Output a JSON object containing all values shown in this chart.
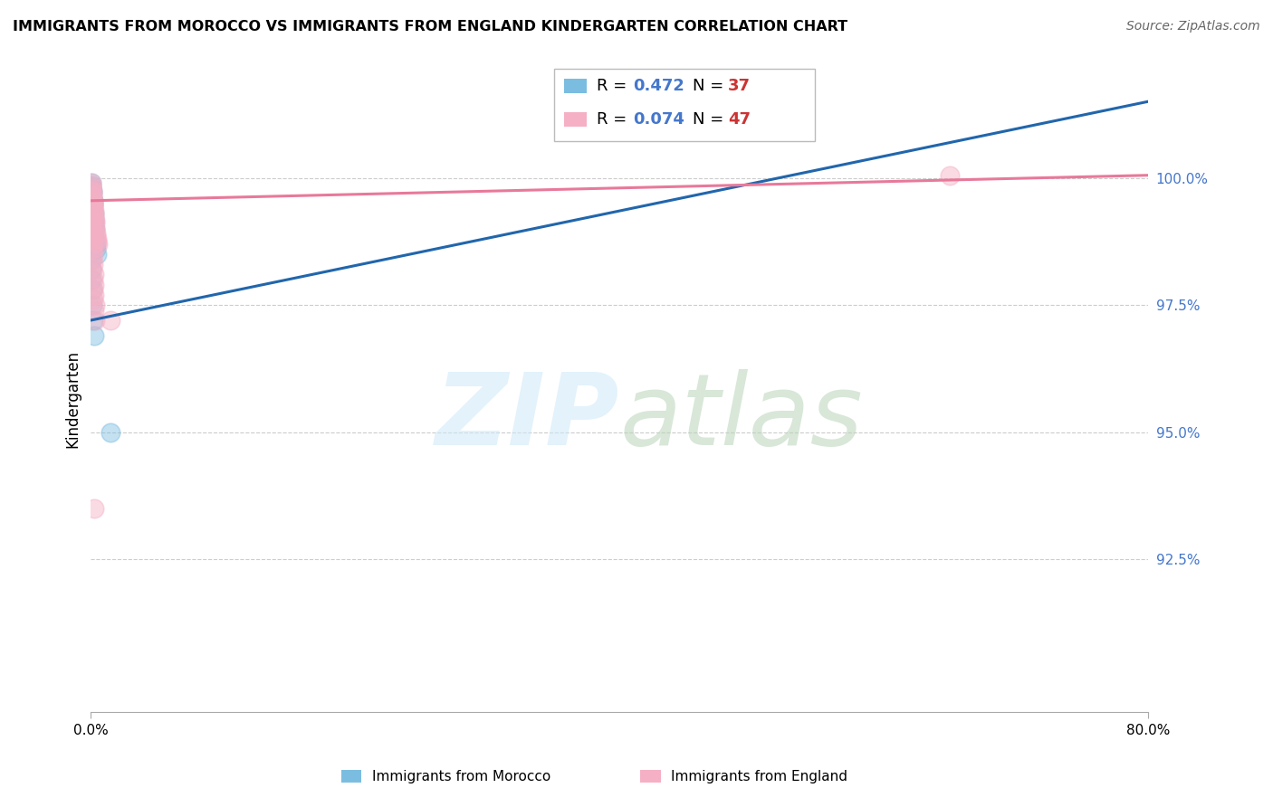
{
  "title": "IMMIGRANTS FROM MOROCCO VS IMMIGRANTS FROM ENGLAND KINDERGARTEN CORRELATION CHART",
  "source": "Source: ZipAtlas.com",
  "ylabel": "Kindergarten",
  "ytick_labels": [
    "100.0%",
    "97.5%",
    "95.0%",
    "92.5%"
  ],
  "ytick_values": [
    100.0,
    97.5,
    95.0,
    92.5
  ],
  "ymin": 89.5,
  "ymax": 101.8,
  "xmin": 0.0,
  "xmax": 80.0,
  "legend_label_blue": "Immigrants from Morocco",
  "legend_label_pink": "Immigrants from England",
  "blue_color": "#7bbde0",
  "pink_color": "#f5b0c5",
  "blue_line_color": "#2166ac",
  "pink_line_color": "#e8799a",
  "blue_R": "0.472",
  "blue_N": "37",
  "pink_R": "0.074",
  "pink_N": "47",
  "R_color": "#4477cc",
  "N_color": "#cc3333",
  "blue_trend_x0": 0.0,
  "blue_trend_y0": 97.2,
  "blue_trend_x1": 80.0,
  "blue_trend_y1": 101.5,
  "pink_trend_x0": 0.0,
  "pink_trend_y0": 99.55,
  "pink_trend_x1": 80.0,
  "pink_trend_y1": 100.05,
  "blue_x": [
    0.05,
    0.08,
    0.1,
    0.12,
    0.15,
    0.18,
    0.2,
    0.22,
    0.25,
    0.28,
    0.32,
    0.35,
    0.38,
    0.42,
    0.48,
    0.02,
    0.03,
    0.04,
    0.05,
    0.06,
    0.07,
    0.08,
    0.09,
    0.1,
    0.11,
    0.12,
    0.14,
    0.16,
    0.18,
    0.05,
    0.06,
    0.07,
    0.08,
    0.09,
    0.2,
    0.25,
    1.5
  ],
  "blue_y": [
    99.8,
    99.7,
    99.75,
    99.6,
    99.5,
    99.55,
    99.45,
    99.3,
    99.2,
    99.1,
    99.0,
    98.8,
    98.7,
    98.6,
    98.5,
    99.9,
    99.85,
    99.7,
    99.65,
    99.6,
    99.55,
    99.5,
    99.4,
    99.3,
    99.2,
    99.1,
    99.0,
    98.9,
    98.7,
    98.4,
    98.2,
    98.0,
    97.8,
    97.5,
    97.2,
    96.9,
    95.0
  ],
  "pink_x": [
    0.03,
    0.05,
    0.07,
    0.08,
    0.1,
    0.12,
    0.14,
    0.15,
    0.17,
    0.18,
    0.2,
    0.22,
    0.24,
    0.26,
    0.28,
    0.3,
    0.32,
    0.35,
    0.38,
    0.4,
    0.43,
    0.46,
    0.5,
    0.05,
    0.08,
    0.1,
    0.12,
    0.15,
    0.18,
    0.2,
    0.22,
    0.25,
    0.28,
    0.32,
    0.04,
    0.06,
    0.09,
    0.11,
    0.13,
    0.16,
    0.19,
    0.21,
    0.24,
    0.27,
    0.31,
    1.5,
    65.0
  ],
  "pink_y": [
    99.9,
    99.85,
    99.8,
    99.75,
    99.7,
    99.65,
    99.6,
    99.55,
    99.5,
    99.45,
    99.4,
    99.35,
    99.3,
    99.25,
    99.2,
    99.15,
    99.1,
    99.0,
    98.9,
    98.85,
    98.8,
    98.75,
    98.7,
    99.5,
    99.3,
    99.1,
    98.9,
    98.7,
    98.5,
    98.3,
    98.1,
    97.9,
    97.7,
    97.5,
    99.0,
    98.8,
    98.6,
    98.4,
    98.2,
    98.0,
    97.8,
    97.6,
    93.5,
    97.4,
    97.2,
    97.2,
    100.05
  ]
}
